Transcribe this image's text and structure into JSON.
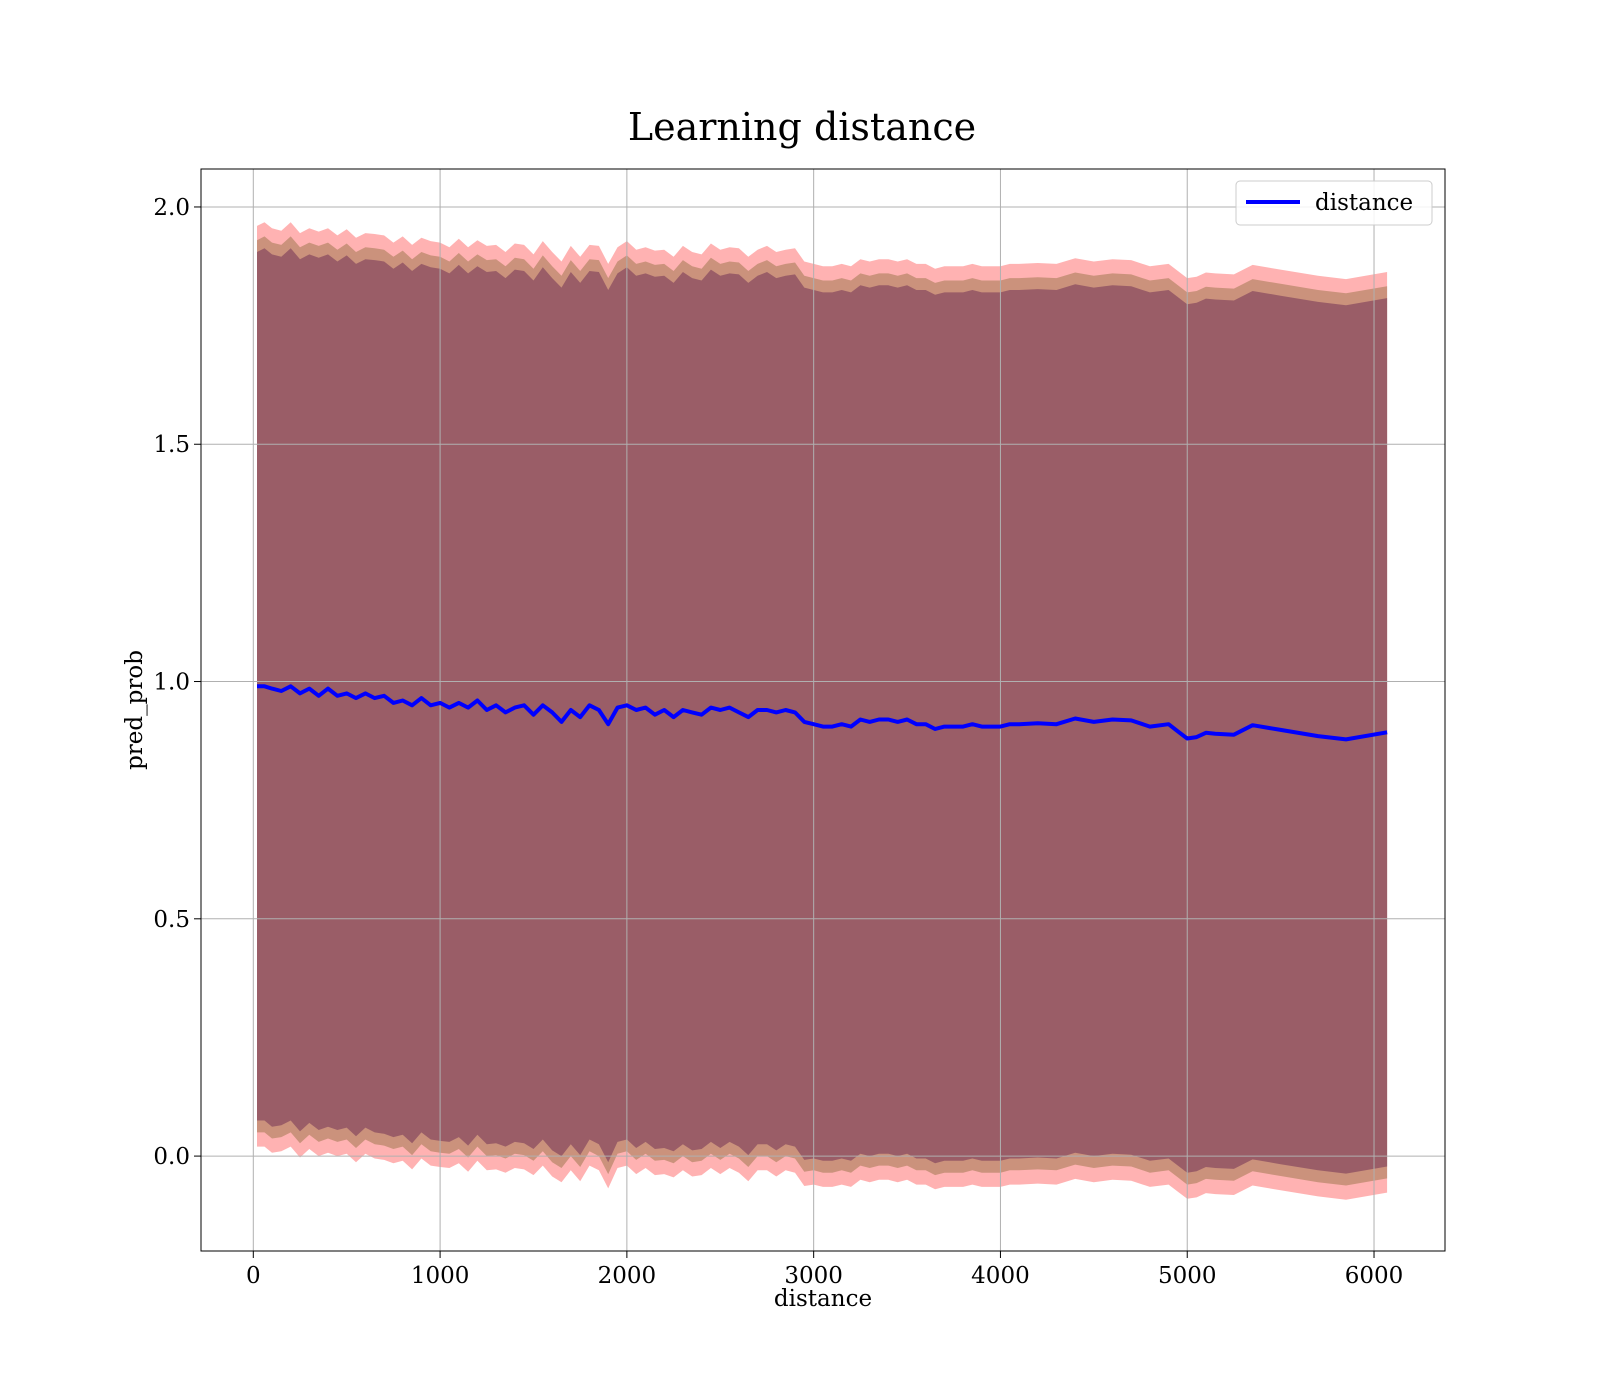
{
  "chart_data": {
    "type": "line",
    "title": "Learning distance",
    "xlabel": "distance",
    "ylabel": "pred_prob",
    "xlim": [
      -280,
      6380
    ],
    "ylim": [
      -0.2,
      2.08
    ],
    "xticks": [
      0,
      1000,
      2000,
      3000,
      4000,
      5000,
      6000
    ],
    "xtick_labels": [
      "0",
      "1000",
      "2000",
      "3000",
      "4000",
      "5000",
      "6000"
    ],
    "yticks": [
      0.0,
      0.5,
      1.0,
      1.5,
      2.0
    ],
    "ytick_labels": [
      "0.0",
      "0.5",
      "1.0",
      "1.5",
      "2.0"
    ],
    "grid": true,
    "legend": {
      "position": "top-right",
      "entries": [
        "distance"
      ]
    },
    "series": [
      {
        "name": "distance",
        "color": "#0000ff",
        "x": [
          20,
          60,
          100,
          150,
          200,
          250,
          300,
          350,
          400,
          450,
          500,
          550,
          600,
          650,
          700,
          750,
          800,
          850,
          900,
          950,
          1000,
          1050,
          1100,
          1150,
          1200,
          1250,
          1300,
          1350,
          1400,
          1450,
          1500,
          1550,
          1600,
          1650,
          1700,
          1750,
          1800,
          1850,
          1900,
          1950,
          2000,
          2050,
          2100,
          2150,
          2200,
          2250,
          2300,
          2350,
          2400,
          2450,
          2500,
          2550,
          2600,
          2650,
          2700,
          2750,
          2800,
          2850,
          2900,
          2950,
          3000,
          3050,
          3100,
          3150,
          3200,
          3250,
          3300,
          3350,
          3400,
          3450,
          3500,
          3550,
          3600,
          3650,
          3700,
          3750,
          3800,
          3850,
          3900,
          3950,
          4000,
          4050,
          4100,
          4200,
          4300,
          4400,
          4500,
          4600,
          4700,
          4800,
          4900,
          4950,
          5000,
          5050,
          5100,
          5150,
          5250,
          5350,
          5500,
          5700,
          5850,
          6070
        ],
        "y": [
          0.99,
          0.99,
          0.985,
          0.98,
          0.99,
          0.975,
          0.985,
          0.97,
          0.985,
          0.97,
          0.975,
          0.965,
          0.975,
          0.965,
          0.97,
          0.955,
          0.96,
          0.95,
          0.965,
          0.95,
          0.955,
          0.945,
          0.955,
          0.945,
          0.96,
          0.94,
          0.95,
          0.935,
          0.945,
          0.95,
          0.93,
          0.95,
          0.935,
          0.915,
          0.94,
          0.925,
          0.95,
          0.94,
          0.91,
          0.945,
          0.95,
          0.94,
          0.945,
          0.93,
          0.94,
          0.925,
          0.94,
          0.935,
          0.93,
          0.945,
          0.94,
          0.945,
          0.935,
          0.925,
          0.94,
          0.94,
          0.935,
          0.94,
          0.935,
          0.915,
          0.91,
          0.905,
          0.905,
          0.91,
          0.905,
          0.92,
          0.915,
          0.92,
          0.92,
          0.915,
          0.92,
          0.91,
          0.91,
          0.9,
          0.905,
          0.905,
          0.905,
          0.91,
          0.905,
          0.905,
          0.905,
          0.91,
          0.91,
          0.912,
          0.91,
          0.922,
          0.915,
          0.92,
          0.918,
          0.905,
          0.91,
          0.895,
          0.88,
          0.883,
          0.892,
          0.89,
          0.888,
          0.908,
          0.898,
          0.885,
          0.878,
          0.893
        ]
      }
    ],
    "bands": [
      {
        "color": "#ff0000",
        "opacity": 0.3,
        "halfwidth": 0.97
      },
      {
        "color": "#8c6a3a",
        "opacity": 0.45,
        "halfwidth": 0.94
      },
      {
        "color": "#7a3b5a",
        "opacity": 0.6,
        "halfwidth": 0.915
      }
    ]
  }
}
